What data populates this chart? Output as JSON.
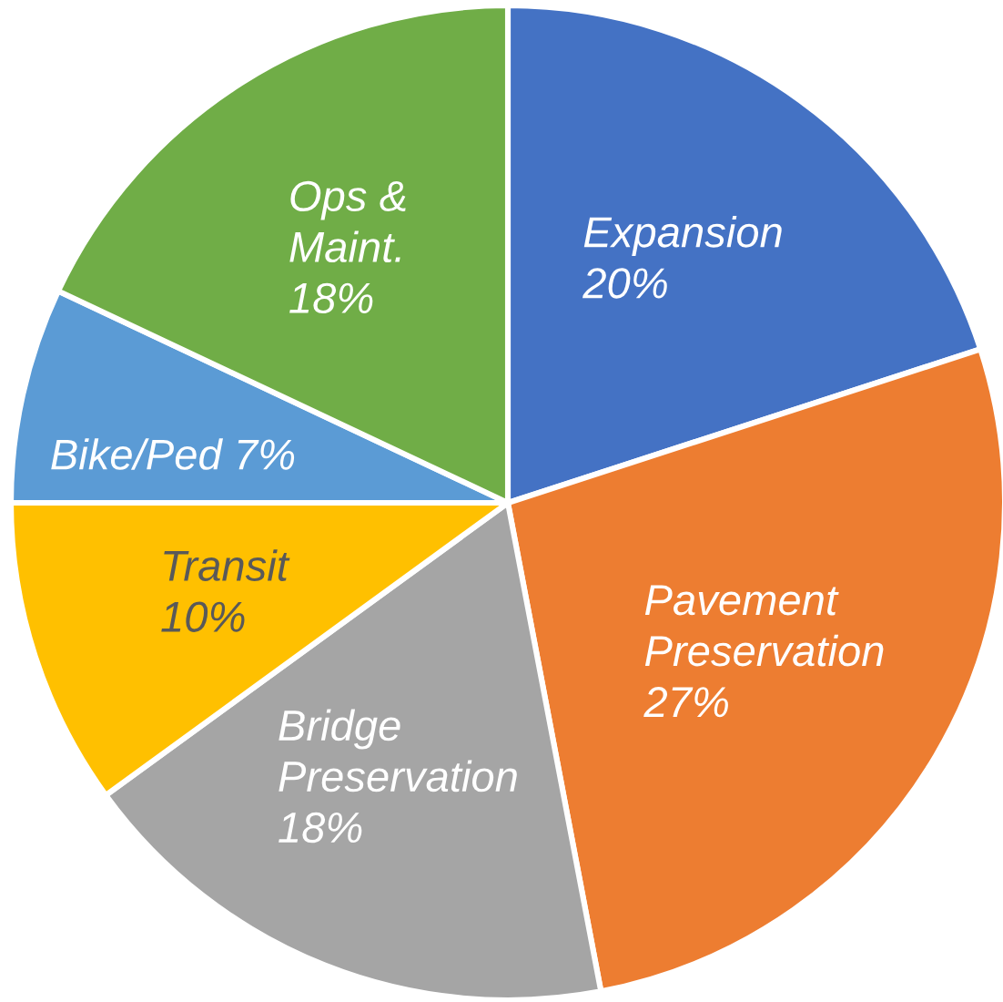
{
  "chart_data": {
    "type": "pie",
    "categories": [
      "Expansion",
      "Pavement Preservation",
      "Bridge Preservation",
      "Transit",
      "Bike/Ped",
      "Ops & Maint."
    ],
    "values": [
      20,
      27,
      18,
      10,
      7,
      18
    ],
    "value_labels": [
      "20%",
      "27%",
      "18%",
      "10%",
      "7%",
      "18%"
    ],
    "colors": [
      "#4472c4",
      "#ed7d31",
      "#a5a5a5",
      "#ffc000",
      "#5b9bd5",
      "#70ad47"
    ]
  }
}
